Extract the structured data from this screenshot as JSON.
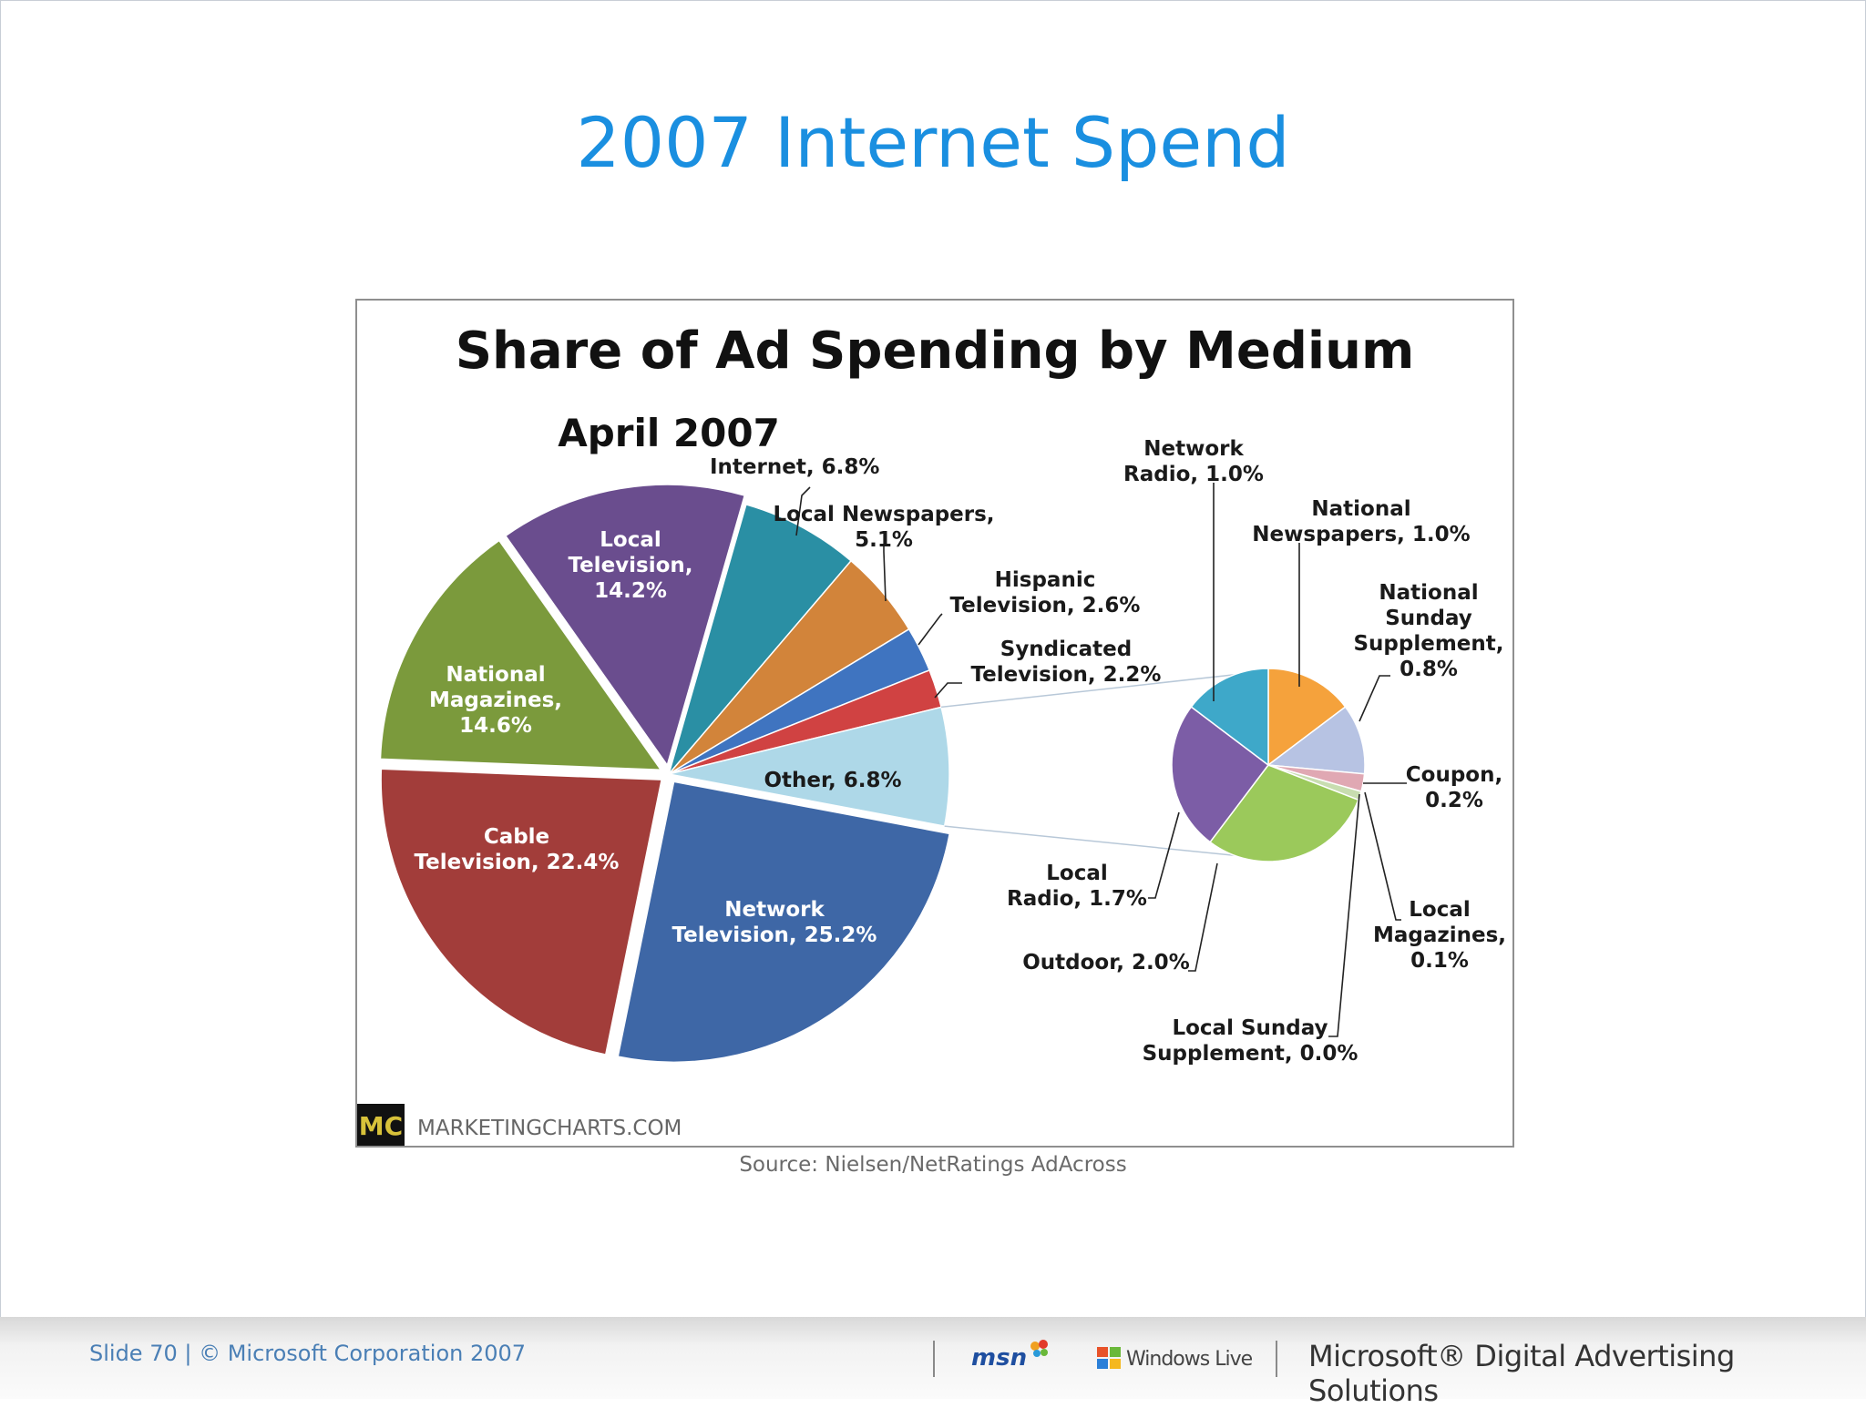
{
  "slide": {
    "title": "2007 Internet Spend",
    "source": "Source: Nielsen/NetRatings AdAcross",
    "footer": "Slide 70 | © Microsoft Corporation 2007",
    "logos": {
      "msn": "msn",
      "windows_live": "Windows Live",
      "brand": "Microsoft® Digital Advertising Solutions"
    }
  },
  "chart_data": {
    "type": "pie",
    "title": "Share of Ad Spending by Medium",
    "subtitle": "April 2007",
    "watermark": "MARKETINGCHARTS.COM",
    "watermark_badge": "MC",
    "slices": [
      {
        "name": "Internet",
        "value": 6.8,
        "label": "Internet, 6.8%",
        "color": "#2a8fa4"
      },
      {
        "name": "Local Newspapers",
        "value": 5.1,
        "label": "Local Newspapers, 5.1%",
        "color": "#d2843a"
      },
      {
        "name": "Hispanic Television",
        "value": 2.6,
        "label": "Hispanic Television, 2.6%",
        "color": "#3f74c0"
      },
      {
        "name": "Syndicated Television",
        "value": 2.2,
        "label": "Syndicated Television, 2.2%",
        "color": "#d04242"
      },
      {
        "name": "Other",
        "value": 6.8,
        "label": "Other, 6.8%",
        "color": "#aed8e8"
      },
      {
        "name": "Network Television",
        "value": 25.2,
        "label": "Network Television, 25.2%",
        "color": "#3e67a6"
      },
      {
        "name": "Cable Television",
        "value": 22.4,
        "label": "Cable Television, 22.4%",
        "color": "#a23d3a"
      },
      {
        "name": "National Magazines",
        "value": 14.6,
        "label": "National Magazines, 14.6%",
        "color": "#7b9a3c"
      },
      {
        "name": "Local Television",
        "value": 14.2,
        "label": "Local Television, 14.2%",
        "color": "#6a4d8e"
      }
    ],
    "breakout": {
      "of": "Other",
      "slices": [
        {
          "name": "National Newspapers",
          "value": 1.0,
          "label": "National Newspapers, 1.0%",
          "color": "#f5a23c"
        },
        {
          "name": "National Sunday Supplement",
          "value": 0.8,
          "label": "National Sunday Supplement, 0.8%",
          "color": "#b7c3e3"
        },
        {
          "name": "Coupon",
          "value": 0.2,
          "label": "Coupon, 0.2%",
          "color": "#e0a8b3"
        },
        {
          "name": "Local Magazines",
          "value": 0.1,
          "label": "Local Magazines, 0.1%",
          "color": "#c8ddb0"
        },
        {
          "name": "Local Sunday Supplement",
          "value": 0.0,
          "label": "Local Sunday Supplement, 0.0%",
          "color": "#9bbf5a"
        },
        {
          "name": "Outdoor",
          "value": 2.0,
          "label": "Outdoor, 2.0%",
          "color": "#9bc95b"
        },
        {
          "name": "Local Radio",
          "value": 1.7,
          "label": "Local Radio, 1.7%",
          "color": "#7c5da6"
        },
        {
          "name": "Network Radio",
          "value": 1.0,
          "label": "Network Radio, 1.0%",
          "color": "#3ea8c9"
        }
      ]
    }
  }
}
